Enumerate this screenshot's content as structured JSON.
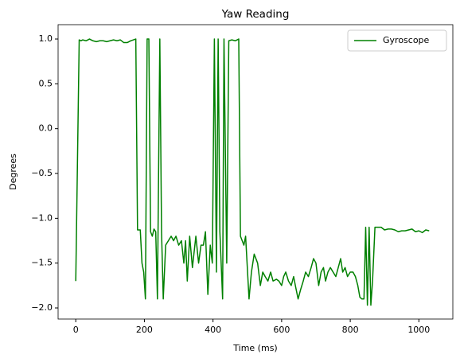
{
  "chart_data": {
    "type": "line",
    "title": "Yaw Reading",
    "x_label": "Time (ms)",
    "y_label": "Degrees",
    "x": [
      0,
      10,
      15,
      20,
      30,
      40,
      50,
      60,
      70,
      80,
      90,
      100,
      110,
      120,
      130,
      140,
      150,
      160,
      175,
      180,
      188,
      193,
      198,
      203,
      208,
      213,
      218,
      223,
      228,
      233,
      238,
      245,
      250,
      255,
      262,
      270,
      278,
      285,
      292,
      300,
      308,
      315,
      320,
      325,
      332,
      340,
      350,
      358,
      365,
      372,
      378,
      385,
      392,
      398,
      404,
      410,
      415,
      420,
      428,
      432,
      440,
      446,
      455,
      465,
      475,
      480,
      490,
      495,
      505,
      512,
      520,
      530,
      538,
      545,
      552,
      560,
      568,
      575,
      585,
      592,
      600,
      606,
      612,
      620,
      628,
      635,
      640,
      648,
      655,
      663,
      670,
      678,
      686,
      693,
      700,
      708,
      715,
      722,
      728,
      735,
      742,
      750,
      758,
      765,
      772,
      778,
      785,
      792,
      800,
      808,
      815,
      822,
      828,
      834,
      840,
      845,
      850,
      855,
      860,
      865,
      872,
      880,
      890,
      900,
      910,
      920,
      930,
      940,
      950,
      960,
      970,
      980,
      990,
      1000,
      1010,
      1020,
      1030
    ],
    "series": [
      {
        "name": "Gyroscope",
        "color": "#008000",
        "values": [
          -1.7,
          0.99,
          0.98,
          0.99,
          0.98,
          1.0,
          0.98,
          0.97,
          0.98,
          0.98,
          0.97,
          0.98,
          0.99,
          0.98,
          0.99,
          0.96,
          0.96,
          0.98,
          1.0,
          -1.13,
          -1.13,
          -1.5,
          -1.6,
          -1.9,
          1.0,
          1.0,
          -1.15,
          -1.2,
          -1.12,
          -1.15,
          -1.9,
          1.0,
          -1.15,
          -1.9,
          -1.3,
          -1.25,
          -1.2,
          -1.25,
          -1.2,
          -1.3,
          -1.25,
          -1.5,
          -1.25,
          -1.7,
          -1.2,
          -1.55,
          -1.2,
          -1.5,
          -1.3,
          -1.3,
          -1.15,
          -1.85,
          -1.3,
          -1.5,
          1.0,
          -1.6,
          1.0,
          -1.15,
          -1.9,
          1.0,
          -1.5,
          0.98,
          0.99,
          0.98,
          1.0,
          -1.2,
          -1.3,
          -1.2,
          -1.9,
          -1.6,
          -1.4,
          -1.5,
          -1.75,
          -1.6,
          -1.65,
          -1.7,
          -1.6,
          -1.7,
          -1.68,
          -1.7,
          -1.75,
          -1.65,
          -1.6,
          -1.7,
          -1.75,
          -1.65,
          -1.75,
          -1.9,
          -1.8,
          -1.7,
          -1.6,
          -1.65,
          -1.55,
          -1.45,
          -1.5,
          -1.75,
          -1.6,
          -1.55,
          -1.7,
          -1.6,
          -1.55,
          -1.6,
          -1.65,
          -1.55,
          -1.45,
          -1.6,
          -1.55,
          -1.65,
          -1.6,
          -1.6,
          -1.65,
          -1.75,
          -1.88,
          -1.9,
          -1.9,
          -1.1,
          -1.97,
          -1.1,
          -1.97,
          -1.7,
          -1.1,
          -1.1,
          -1.1,
          -1.13,
          -1.12,
          -1.12,
          -1.13,
          -1.15,
          -1.14,
          -1.14,
          -1.13,
          -1.12,
          -1.15,
          -1.14,
          -1.16,
          -1.13,
          -1.14
        ]
      }
    ],
    "xlim": [
      -51.5,
      1099
    ],
    "xticks": [
      0,
      200,
      400,
      600,
      800,
      1000
    ],
    "ylim": [
      -2.124,
      1.16
    ],
    "yticks": [
      {
        "value": -2.0,
        "label": "−2.0"
      },
      {
        "value": -1.5,
        "label": "−1.5"
      },
      {
        "value": -1.0,
        "label": "−1.0"
      },
      {
        "value": -0.5,
        "label": "−0.5"
      },
      {
        "value": 0.0,
        "label": "0.0"
      },
      {
        "value": 0.5,
        "label": "0.5"
      },
      {
        "value": 1.0,
        "label": "1.0"
      }
    ],
    "grid": false,
    "legend": "upper right"
  }
}
